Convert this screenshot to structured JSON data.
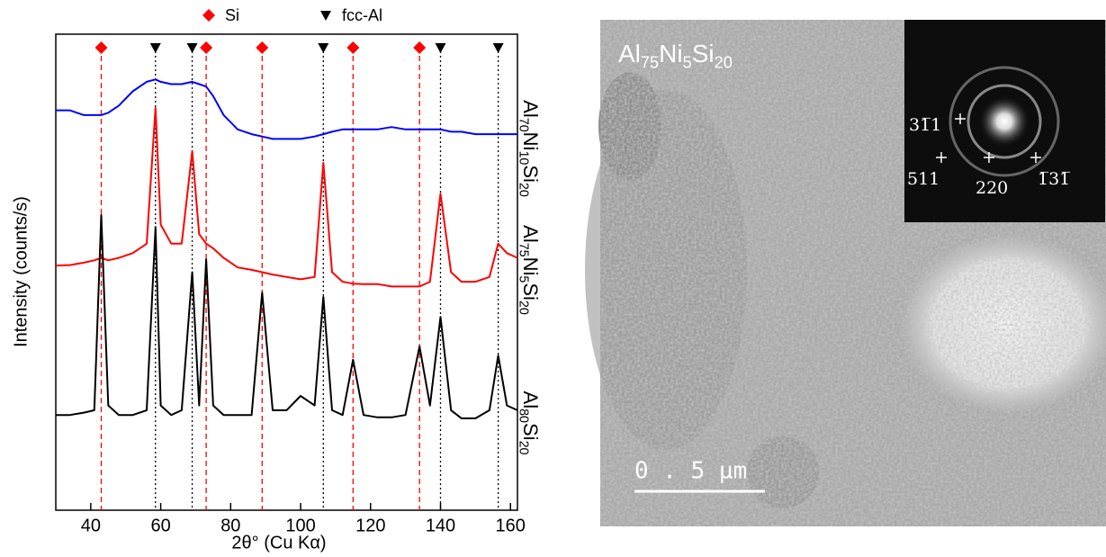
{
  "chart_data": {
    "type": "line",
    "x_label": "2θ° (Cu Kα)",
    "y_label": "Intensity (counts/s)",
    "xlim": [
      30,
      162
    ],
    "xticks": [
      40,
      60,
      80,
      100,
      120,
      140,
      160
    ],
    "ylim": [
      0,
      100
    ],
    "x": [
      30,
      34,
      38,
      41,
      43,
      45,
      48,
      52,
      56,
      58.5,
      60,
      63,
      66,
      69,
      71,
      73,
      75,
      78,
      82,
      86,
      89,
      92,
      96,
      100,
      104,
      106.5,
      109,
      112,
      115,
      118,
      122,
      126,
      130,
      134,
      137,
      140,
      143,
      146,
      150,
      154,
      156.5,
      159,
      162
    ],
    "series": [
      {
        "name": "Al70Ni10Si20",
        "color": "#0000ff",
        "values": [
          84,
          84,
          83,
          83,
          83,
          83.5,
          85,
          88,
          90,
          90.5,
          90,
          89.5,
          89.5,
          90,
          89.5,
          89,
          87,
          83,
          80,
          79,
          78.5,
          78,
          78,
          78,
          78.5,
          79,
          79.5,
          80,
          80,
          80,
          80,
          80.5,
          80,
          80,
          80,
          80,
          79.5,
          79.5,
          79,
          79,
          79,
          79,
          79
        ]
      },
      {
        "name": "Al75Ni5Si20",
        "color": "#ff0000",
        "values": [
          51.4,
          51.5,
          52,
          52.5,
          53,
          52.5,
          53,
          54,
          56,
          84.5,
          60,
          56,
          56,
          75.4,
          58,
          56,
          55,
          53,
          51,
          50.5,
          50,
          49.5,
          49,
          48.5,
          49,
          73,
          50,
          48,
          47.6,
          47.5,
          47.5,
          47,
          47,
          47,
          48,
          66.5,
          50,
          48,
          48,
          49,
          56,
          54,
          53
        ]
      },
      {
        "name": "Al80Si20",
        "color": "#000000",
        "values": [
          20,
          20,
          20.5,
          21,
          62,
          22,
          20,
          20,
          21,
          59.5,
          22,
          20,
          21,
          50,
          22,
          52.7,
          22,
          20,
          20,
          20,
          45.7,
          21,
          21,
          24,
          22,
          44.8,
          21,
          20,
          31.6,
          20,
          19.5,
          19.5,
          20,
          34.4,
          22,
          40.6,
          21,
          19.3,
          19.3,
          21,
          32.5,
          22,
          21
        ]
      }
    ],
    "reference_lines": [
      {
        "name": "Si",
        "color": "#ff0000",
        "positions": [
          43,
          73,
          89,
          115,
          134
        ]
      },
      {
        "name": "fcc-Al",
        "color": "#000000",
        "positions": [
          58.5,
          69,
          106.5,
          140,
          156.5
        ]
      }
    ]
  },
  "micrograph": {
    "label": "Al75Ni5Si20",
    "scale_bar": "0 . 5  µm",
    "diffraction_labels": [
      "31̅1",
      "511",
      "220",
      "1̅31̅"
    ]
  }
}
